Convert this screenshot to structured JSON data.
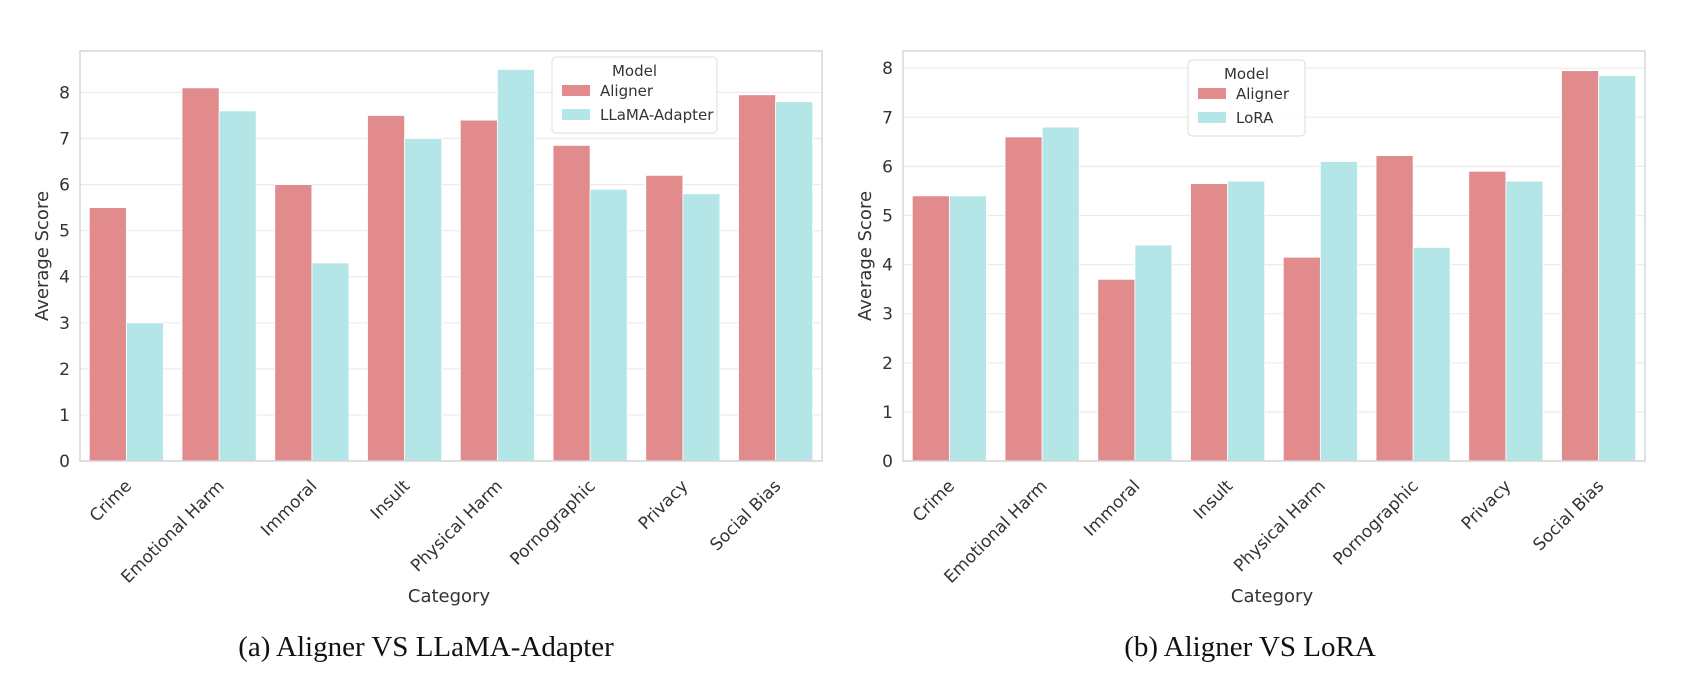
{
  "colors": {
    "aligner": "#e18b8c",
    "other": "#b5e6e7",
    "grid": "#ebebeb",
    "spine": "#d6d6d6"
  },
  "chart_data": [
    {
      "type": "bar",
      "caption": "(a) Aligner VS LLaMA-Adapter",
      "xlabel": "Category",
      "ylabel": "Average Score",
      "ylim": [
        0,
        8.9
      ],
      "yticks": [
        "0",
        "1",
        "2",
        "3",
        "4",
        "5",
        "6",
        "7",
        "8"
      ],
      "categories": [
        "Crime",
        "Emotional Harm",
        "Immoral",
        "Insult",
        "Physical Harm",
        "Pornographic",
        "Privacy",
        "Social Bias"
      ],
      "legend_title": "Model",
      "legend_position": "top-right",
      "grid": true,
      "series": [
        {
          "name": "Aligner",
          "values": [
            5.5,
            8.1,
            6.0,
            7.5,
            7.4,
            6.85,
            6.2,
            7.95
          ]
        },
        {
          "name": "LLaMA-Adapter",
          "values": [
            3.0,
            7.6,
            4.3,
            7.0,
            8.5,
            5.9,
            5.8,
            7.8
          ]
        }
      ]
    },
    {
      "type": "bar",
      "caption": "(b) Aligner VS LoRA",
      "xlabel": "Category",
      "ylabel": "Average Score",
      "ylim": [
        0,
        8.35
      ],
      "yticks": [
        "0",
        "1",
        "2",
        "3",
        "4",
        "5",
        "6",
        "7",
        "8"
      ],
      "categories": [
        "Crime",
        "Emotional Harm",
        "Immoral",
        "Insult",
        "Physical Harm",
        "Pornographic",
        "Privacy",
        "Social Bias"
      ],
      "legend_title": "Model",
      "legend_position": "top-center",
      "grid": true,
      "series": [
        {
          "name": "Aligner",
          "values": [
            5.4,
            6.6,
            3.7,
            5.65,
            4.15,
            6.22,
            5.9,
            7.95
          ]
        },
        {
          "name": "LoRA",
          "values": [
            5.4,
            6.8,
            4.4,
            5.7,
            6.1,
            4.35,
            5.7,
            7.85
          ]
        }
      ]
    }
  ]
}
